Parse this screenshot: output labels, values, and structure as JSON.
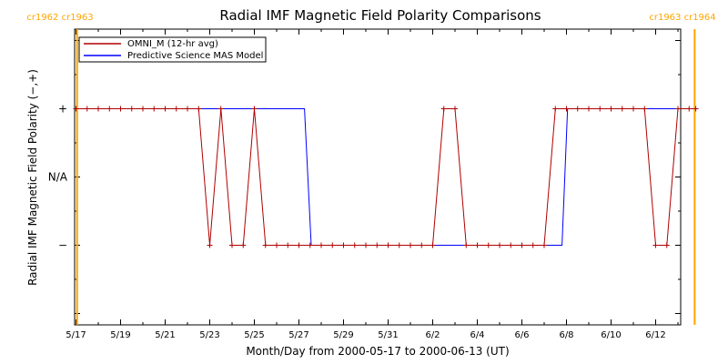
{
  "chart_data": {
    "type": "line",
    "title": "Radial IMF Magnetic Field Polarity Comparisons",
    "xlabel": "Month/Day from 2000-05-17 to 2000-06-13 (UT)",
    "ylabel": "Radial IMF Magnetic Field Polarity (−,+)",
    "x_ticks": [
      "5/17",
      "5/19",
      "5/21",
      "5/23",
      "5/25",
      "5/27",
      "5/29",
      "5/31",
      "6/2",
      "6/4",
      "6/6",
      "6/8",
      "6/10",
      "6/12"
    ],
    "y_ticks": [
      {
        "value": 1,
        "label": "+"
      },
      {
        "value": 0,
        "label": "N/A"
      },
      {
        "value": -1,
        "label": "−"
      }
    ],
    "xlim_days": [
      0,
      27.9
    ],
    "ylim": [
      -2,
      2
    ],
    "cr_markers": [
      {
        "day": 0.05,
        "label": "cr1962 cr1963",
        "side": "left"
      },
      {
        "day": 27.75,
        "label": "cr1963 cr1964",
        "side": "right"
      }
    ],
    "marker_color": "#ffa500",
    "legend": [
      {
        "label": "OMNI_M (12-hr avg)",
        "color": "#b00000"
      },
      {
        "label": "Predictive Science MAS Model",
        "color": "#0000ff"
      }
    ],
    "series": [
      {
        "name": "OMNI_M (12-hr avg)",
        "color": "#b00000",
        "x": [
          0,
          0.5,
          1,
          1.5,
          2,
          2.5,
          3,
          3.5,
          4,
          4.5,
          5,
          5.5,
          6,
          6.5,
          7,
          7.5,
          8,
          8.5,
          9,
          9.5,
          10,
          10.5,
          11,
          11.5,
          12,
          12.5,
          13,
          13.5,
          14,
          14.5,
          15,
          15.5,
          16,
          16.5,
          17,
          17.5,
          18,
          18.5,
          19,
          19.5,
          20,
          20.5,
          21,
          21.5,
          22,
          22.5,
          23,
          23.5,
          24,
          24.5,
          25,
          25.5,
          26,
          26.5,
          27,
          27.5,
          27.8
        ],
        "y": [
          1,
          1,
          1,
          1,
          1,
          1,
          1,
          1,
          1,
          1,
          1,
          1,
          -1,
          1,
          -1,
          -1,
          1,
          -1,
          -1,
          -1,
          -1,
          -1,
          -1,
          -1,
          -1,
          -1,
          -1,
          -1,
          -1,
          -1,
          -1,
          -1,
          -1,
          1,
          1,
          -1,
          -1,
          -1,
          -1,
          -1,
          -1,
          -1,
          -1,
          1,
          1,
          1,
          1,
          1,
          1,
          1,
          1,
          1,
          -1,
          -1,
          1,
          1,
          1
        ]
      },
      {
        "name": "Predictive Science MAS Model",
        "color": "#0000ff",
        "x": [
          0,
          10.25,
          10.55,
          21.8,
          22.05,
          27.8
        ],
        "y": [
          1,
          1,
          -1,
          -1,
          1,
          1
        ]
      }
    ],
    "grid": false,
    "legend_position": "top-left"
  }
}
